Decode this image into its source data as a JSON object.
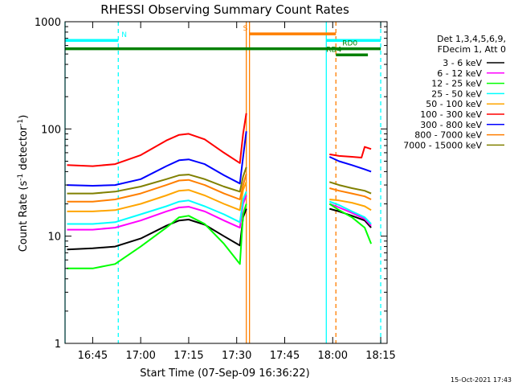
{
  "chart_data": {
    "type": "line",
    "title": "RHESSI Observing Summary Count Rates",
    "xlabel": "Start Time (07-Sep-09 16:36:22)",
    "ylabel_main": "Count Rate (s",
    "ylabel_sup": "-1",
    "ylabel_tail": " detector",
    "ylabel_end": ")",
    "yscale": "log",
    "xlim": [
      "16:36:22",
      "18:17:00"
    ],
    "ylim": [
      1,
      1000
    ],
    "x_ticks": [
      "16:45",
      "17:00",
      "17:15",
      "17:30",
      "17:45",
      "18:00",
      "18:15"
    ],
    "y_tick_labels": [
      {
        "value": 1,
        "label": "1"
      },
      {
        "value": 10,
        "label": "10"
      },
      {
        "value": 100,
        "label": "100"
      },
      {
        "value": 1000,
        "label": "1000"
      }
    ],
    "legend": {
      "placement": "right",
      "header": [
        "Det 1,3,4,5,6,9,",
        "FDecim 1, Att 0"
      ]
    },
    "series": [
      {
        "name": "3 - 6 keV",
        "color": "#000000",
        "points": [
          [
            "16:37",
            7.5
          ],
          [
            "16:45",
            7.7
          ],
          [
            "16:52",
            8
          ],
          [
            "17:00",
            9.5
          ],
          [
            "17:08",
            12.5
          ],
          [
            "17:12",
            14
          ],
          [
            "17:15",
            14.3
          ],
          [
            "17:20",
            12.8
          ],
          [
            "17:26",
            10
          ],
          [
            "17:31",
            8.2
          ],
          [
            "17:32",
            15
          ],
          [
            "17:33",
            18
          ]
        ],
        "points_after": [
          [
            "17:59",
            18
          ],
          [
            "18:02",
            17
          ],
          [
            "18:06",
            15.5
          ],
          [
            "18:10",
            14
          ],
          [
            "18:12",
            12
          ]
        ]
      },
      {
        "name": "6 - 12 keV",
        "color": "#ff00ff",
        "points": [
          [
            "16:37",
            11.5
          ],
          [
            "16:45",
            11.5
          ],
          [
            "16:52",
            12
          ],
          [
            "17:00",
            14
          ],
          [
            "17:08",
            17
          ],
          [
            "17:12",
            18.5
          ],
          [
            "17:15",
            18.8
          ],
          [
            "17:20",
            17
          ],
          [
            "17:26",
            14
          ],
          [
            "17:31",
            12
          ],
          [
            "17:32",
            20
          ],
          [
            "17:33",
            24
          ]
        ],
        "points_after": [
          [
            "17:59",
            20
          ],
          [
            "18:02",
            18.5
          ],
          [
            "18:06",
            16.5
          ],
          [
            "18:10",
            14.5
          ],
          [
            "18:12",
            12.5
          ]
        ]
      },
      {
        "name": "12 - 25 keV",
        "color": "#00ff00",
        "points": [
          [
            "16:37",
            5
          ],
          [
            "16:45",
            5
          ],
          [
            "16:52",
            5.5
          ],
          [
            "17:00",
            8
          ],
          [
            "17:08",
            12
          ],
          [
            "17:12",
            15
          ],
          [
            "17:15",
            15.5
          ],
          [
            "17:20",
            13
          ],
          [
            "17:26",
            8.5
          ],
          [
            "17:31",
            5.5
          ],
          [
            "17:32",
            16
          ],
          [
            "17:33",
            20
          ]
        ],
        "points_after": [
          [
            "17:59",
            20
          ],
          [
            "18:02",
            17.5
          ],
          [
            "18:06",
            15
          ],
          [
            "18:10",
            12
          ],
          [
            "18:12",
            8.5
          ]
        ]
      },
      {
        "name": "25 - 50 keV",
        "color": "#00ffff",
        "points": [
          [
            "16:37",
            13
          ],
          [
            "16:45",
            13
          ],
          [
            "16:52",
            13.5
          ],
          [
            "17:00",
            16
          ],
          [
            "17:08",
            19
          ],
          [
            "17:12",
            21
          ],
          [
            "17:15",
            21.5
          ],
          [
            "17:20",
            19
          ],
          [
            "17:26",
            16
          ],
          [
            "17:31",
            13.5
          ],
          [
            "17:32",
            22
          ],
          [
            "17:33",
            26
          ]
        ],
        "points_after": [
          [
            "17:59",
            21
          ],
          [
            "18:02",
            19.5
          ],
          [
            "18:06",
            17
          ],
          [
            "18:10",
            15
          ],
          [
            "18:12",
            13
          ]
        ]
      },
      {
        "name": "50 - 100 keV",
        "color": "#ffa500",
        "points": [
          [
            "16:37",
            17
          ],
          [
            "16:45",
            17
          ],
          [
            "16:52",
            17.5
          ],
          [
            "17:00",
            20
          ],
          [
            "17:08",
            24
          ],
          [
            "17:12",
            26.5
          ],
          [
            "17:15",
            27
          ],
          [
            "17:20",
            24
          ],
          [
            "17:26",
            20
          ],
          [
            "17:31",
            17.5
          ],
          [
            "17:32",
            27
          ],
          [
            "17:33",
            32
          ]
        ],
        "points_after": [
          [
            "17:59",
            22
          ],
          [
            "18:02",
            21.5
          ],
          [
            "18:06",
            20.5
          ],
          [
            "18:10",
            19
          ],
          [
            "18:12",
            17.5
          ]
        ]
      },
      {
        "name": "100 - 300 keV",
        "color": "#ff0000",
        "points": [
          [
            "16:37",
            46
          ],
          [
            "16:45",
            45
          ],
          [
            "16:52",
            47
          ],
          [
            "17:00",
            57
          ],
          [
            "17:08",
            78
          ],
          [
            "17:12",
            88
          ],
          [
            "17:15",
            90
          ],
          [
            "17:20",
            80
          ],
          [
            "17:26",
            60
          ],
          [
            "17:31",
            48
          ],
          [
            "17:32",
            90
          ],
          [
            "17:33",
            140
          ]
        ],
        "points_after": [
          [
            "17:59",
            58
          ],
          [
            "18:02",
            56
          ],
          [
            "18:06",
            55
          ],
          [
            "18:09",
            54
          ],
          [
            "18:10",
            68
          ],
          [
            "18:12",
            65
          ]
        ]
      },
      {
        "name": "300 - 800 keV",
        "color": "#0000ff",
        "points": [
          [
            "16:37",
            30
          ],
          [
            "16:45",
            29.5
          ],
          [
            "16:52",
            30
          ],
          [
            "17:00",
            34
          ],
          [
            "17:08",
            45
          ],
          [
            "17:12",
            51
          ],
          [
            "17:15",
            52
          ],
          [
            "17:20",
            47
          ],
          [
            "17:26",
            37
          ],
          [
            "17:31",
            31
          ],
          [
            "17:32",
            55
          ],
          [
            "17:33",
            95
          ]
        ],
        "points_after": [
          [
            "17:59",
            55
          ],
          [
            "18:02",
            50
          ],
          [
            "18:06",
            46
          ],
          [
            "18:10",
            42
          ],
          [
            "18:12",
            40
          ]
        ]
      },
      {
        "name": "800 - 7000 keV",
        "color": "#ff7f00",
        "points": [
          [
            "16:37",
            21
          ],
          [
            "16:45",
            21
          ],
          [
            "16:52",
            22
          ],
          [
            "17:00",
            25
          ],
          [
            "17:08",
            30
          ],
          [
            "17:12",
            33
          ],
          [
            "17:15",
            33.5
          ],
          [
            "17:20",
            30
          ],
          [
            "17:26",
            25
          ],
          [
            "17:31",
            22
          ],
          [
            "17:32",
            30
          ],
          [
            "17:33",
            38
          ]
        ],
        "points_after": [
          [
            "17:59",
            28
          ],
          [
            "18:02",
            26.5
          ],
          [
            "18:06",
            25
          ],
          [
            "18:10",
            23.5
          ],
          [
            "18:12",
            22
          ]
        ]
      },
      {
        "name": "7000 - 15000 keV",
        "color": "#808000",
        "points": [
          [
            "16:37",
            25
          ],
          [
            "16:45",
            25
          ],
          [
            "16:52",
            26
          ],
          [
            "17:00",
            29
          ],
          [
            "17:08",
            34
          ],
          [
            "17:12",
            37
          ],
          [
            "17:15",
            37.5
          ],
          [
            "17:20",
            34
          ],
          [
            "17:26",
            29
          ],
          [
            "17:31",
            26
          ],
          [
            "17:32",
            36
          ],
          [
            "17:33",
            44
          ]
        ],
        "points_after": [
          [
            "17:59",
            32
          ],
          [
            "18:02",
            30
          ],
          [
            "18:06",
            28
          ],
          [
            "18:10",
            26.5
          ],
          [
            "18:12",
            25
          ]
        ]
      }
    ],
    "flag_bars": [
      {
        "label": "N",
        "color": "#00ffff",
        "y": 670,
        "from": "16:36:22",
        "to": "16:53",
        "label_at": "16:54"
      },
      {
        "label": "",
        "color": "#00ffff",
        "y": 670,
        "from": "17:58",
        "to": "18:15",
        "label_at": ""
      },
      {
        "label": "S",
        "color": "#ff7f00",
        "y": 770,
        "from": "17:34",
        "to": "18:01",
        "label_at": "17:32"
      },
      {
        "label": "RD0",
        "color": "#008000",
        "y": 560,
        "from": "16:36:22",
        "to": "18:15",
        "label_at": "18:03"
      },
      {
        "label": "RD4",
        "color": "#008000",
        "y": 490,
        "from": "18:01",
        "to": "18:11",
        "label_at": "17:58"
      }
    ],
    "vertical_markers": [
      {
        "at": "16:36:22",
        "color": "#00ffff",
        "style": "solid"
      },
      {
        "at": "16:53",
        "color": "#00ffff",
        "style": "dashed"
      },
      {
        "at": "17:33",
        "color": "#ff7f00",
        "style": "solid"
      },
      {
        "at": "17:34",
        "color": "#ff7f00",
        "style": "solid"
      },
      {
        "at": "17:58",
        "color": "#00ffff",
        "style": "solid"
      },
      {
        "at": "18:01",
        "color": "#ff7f00",
        "style": "dashed"
      },
      {
        "at": "18:15",
        "color": "#00ffff",
        "style": "dashed"
      }
    ],
    "annotations": {
      "timestamp": "15-Oct-2021 17:43"
    }
  }
}
